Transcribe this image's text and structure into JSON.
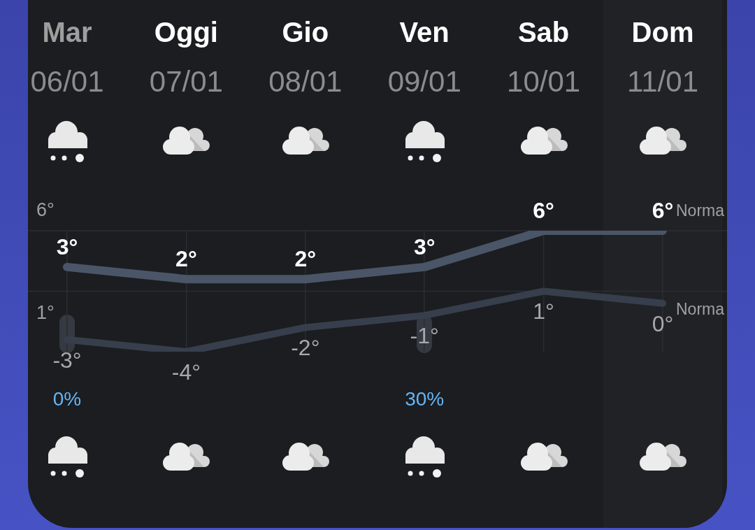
{
  "chart_data": {
    "type": "line",
    "categories": [
      "Mar\n06/01",
      "Oggi\n07/01",
      "Gio\n08/01",
      "Ven\n09/01",
      "Sab\n10/01",
      "Dom\n11/01"
    ],
    "series": [
      {
        "color": "#4b5568",
        "values": [
          3,
          2,
          2,
          3,
          6,
          6
        ],
        "value_labels": [
          "3°",
          "2°",
          "2°",
          "3°",
          "6°",
          "6°"
        ]
      },
      {
        "color": "#373e4c",
        "values": [
          -3,
          -4,
          -2,
          -1,
          1,
          0
        ],
        "value_labels": [
          "-3°",
          "-4°",
          "-2°",
          "-1°",
          "1°",
          "0°"
        ]
      }
    ],
    "ref_lines": [
      {
        "axis": "y",
        "value": 6,
        "label": "Norma",
        "color": "#2b2e34"
      },
      {
        "axis": "y",
        "value": 1,
        "label": "Norma",
        "color": "#2b2e34"
      }
    ],
    "bands": [
      {
        "axis": "x",
        "from": "Dom\n11/01",
        "to": "Dom\n11/01",
        "color": "#212226"
      }
    ],
    "annotations": [
      {
        "text": "6°",
        "y": 6
      },
      {
        "text": "1°",
        "y": 1
      },
      "0%",
      "30%"
    ],
    "grid": "x",
    "legend": false,
    "marker": "none",
    "tick_labels": "x"
  }
}
